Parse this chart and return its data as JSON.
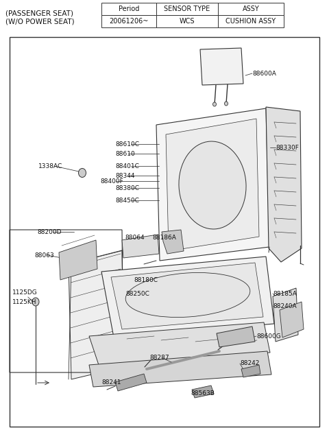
{
  "title_line1": "(PASSENGER SEAT)",
  "title_line2": "(W/O POWER SEAT)",
  "table_headers": [
    "Period",
    "SENSOR TYPE",
    "ASSY"
  ],
  "table_row": [
    "20061206~",
    "WCS",
    "CUSHION ASSY"
  ],
  "bg_color": "#ffffff",
  "line_color": "#333333",
  "label_color": "#111111",
  "font_size_labels": 6.5,
  "font_size_title": 7.5,
  "font_size_table": 7.0
}
